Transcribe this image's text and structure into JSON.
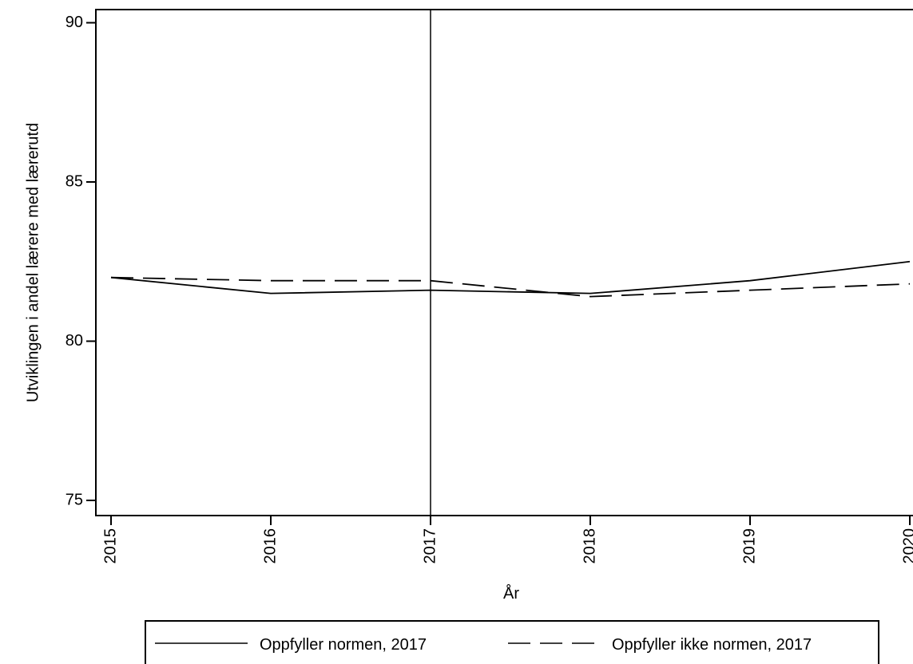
{
  "chart_data": {
    "type": "line",
    "title": "",
    "xlabel": "År",
    "ylabel": "Utviklingen i andel lærere med lærerutd",
    "x": [
      2015,
      2016,
      2017,
      2018,
      2019,
      2020
    ],
    "x_tick_labels": [
      "2015",
      "2016",
      "2017",
      "2018",
      "2019",
      "2020"
    ],
    "y_ticks": [
      75,
      80,
      85,
      90
    ],
    "y_tick_labels": [
      "75",
      "80",
      "85",
      "90"
    ],
    "xlim": [
      2015,
      2020
    ],
    "ylim": [
      74.5,
      90.5
    ],
    "reference_line_x": 2017,
    "grid": false,
    "legend_position": "bottom",
    "series": [
      {
        "name": "Oppfyller normen, 2017",
        "style": "solid",
        "color": "#000000",
        "values": [
          82.0,
          81.5,
          81.6,
          81.5,
          81.9,
          82.5
        ]
      },
      {
        "name": "Oppfyller ikke normen, 2017",
        "style": "dashed",
        "color": "#000000",
        "values": [
          82.0,
          81.9,
          81.9,
          81.4,
          81.6,
          81.8
        ]
      }
    ]
  }
}
